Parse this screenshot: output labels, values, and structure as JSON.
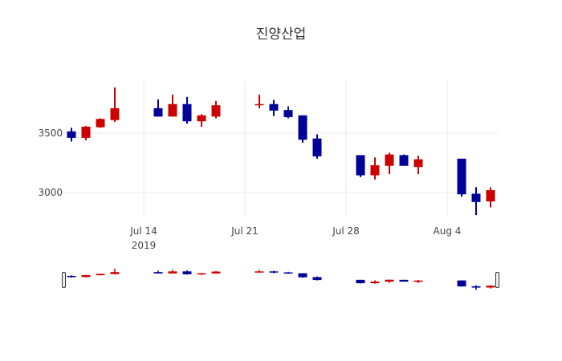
{
  "chart_data": {
    "type": "candlestick",
    "title": "진양산업",
    "xlabel": "",
    "ylabel": "",
    "x_ticks": [
      "Jul 14\n2019",
      "Jul 21",
      "Jul 28",
      "Aug 4"
    ],
    "y_ticks": [
      3000,
      3500
    ],
    "ylim": [
      2780,
      3920
    ],
    "grid": true,
    "rangeslider": true,
    "increasing_color": "#cc0000",
    "decreasing_color": "#000099",
    "series": [
      {
        "date": "2019-07-09",
        "open": 3515,
        "high": 3545,
        "low": 3430,
        "close": 3460
      },
      {
        "date": "2019-07-10",
        "open": 3460,
        "high": 3560,
        "low": 3440,
        "close": 3555
      },
      {
        "date": "2019-07-11",
        "open": 3550,
        "high": 3625,
        "low": 3545,
        "close": 3620
      },
      {
        "date": "2019-07-12",
        "open": 3610,
        "high": 3885,
        "low": 3595,
        "close": 3710
      },
      {
        "date": "2019-07-15",
        "open": 3710,
        "high": 3785,
        "low": 3640,
        "close": 3640
      },
      {
        "date": "2019-07-16",
        "open": 3640,
        "high": 3825,
        "low": 3640,
        "close": 3745
      },
      {
        "date": "2019-07-17",
        "open": 3745,
        "high": 3805,
        "low": 3580,
        "close": 3600
      },
      {
        "date": "2019-07-18",
        "open": 3600,
        "high": 3660,
        "low": 3555,
        "close": 3650
      },
      {
        "date": "2019-07-19",
        "open": 3640,
        "high": 3770,
        "low": 3625,
        "close": 3735
      },
      {
        "date": "2019-07-22",
        "open": 3735,
        "high": 3825,
        "low": 3710,
        "close": 3745
      },
      {
        "date": "2019-07-23",
        "open": 3745,
        "high": 3780,
        "low": 3645,
        "close": 3690
      },
      {
        "date": "2019-07-24",
        "open": 3695,
        "high": 3725,
        "low": 3625,
        "close": 3635
      },
      {
        "date": "2019-07-25",
        "open": 3650,
        "high": 3650,
        "low": 3420,
        "close": 3445
      },
      {
        "date": "2019-07-26",
        "open": 3455,
        "high": 3490,
        "low": 3285,
        "close": 3305
      },
      {
        "date": "2019-07-29",
        "open": 3315,
        "high": 3315,
        "low": 3130,
        "close": 3145
      },
      {
        "date": "2019-07-30",
        "open": 3145,
        "high": 3295,
        "low": 3110,
        "close": 3230
      },
      {
        "date": "2019-07-31",
        "open": 3225,
        "high": 3335,
        "low": 3155,
        "close": 3320
      },
      {
        "date": "2019-08-01",
        "open": 3315,
        "high": 3320,
        "low": 3225,
        "close": 3225
      },
      {
        "date": "2019-08-02",
        "open": 3215,
        "high": 3310,
        "low": 3155,
        "close": 3280
      },
      {
        "date": "2019-08-05",
        "open": 3285,
        "high": 3285,
        "low": 2965,
        "close": 2985
      },
      {
        "date": "2019-08-06",
        "open": 2990,
        "high": 3045,
        "low": 2810,
        "close": 2920
      },
      {
        "date": "2019-08-07",
        "open": 2925,
        "high": 3045,
        "low": 2875,
        "close": 3020
      }
    ]
  },
  "labels": {
    "title": "진양산업",
    "x_tick_jul14": "Jul 14",
    "x_tick_year": "2019",
    "x_tick_jul21": "Jul 21",
    "x_tick_jul28": "Jul 28",
    "x_tick_aug4": "Aug 4",
    "y_tick_3500": "3500",
    "y_tick_3000": "3000"
  }
}
